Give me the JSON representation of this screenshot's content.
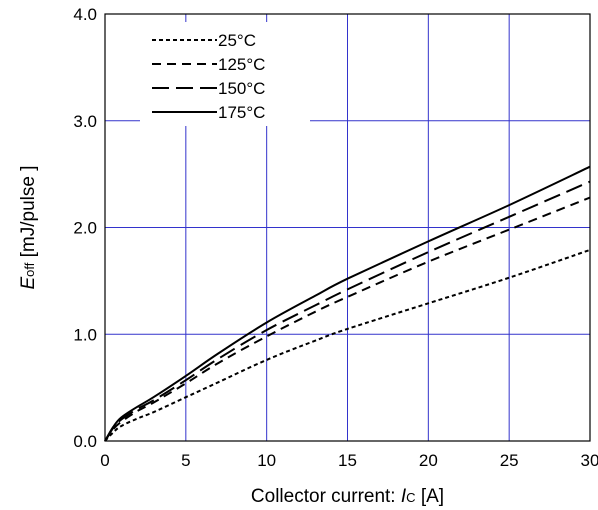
{
  "chart_data": {
    "type": "line",
    "x_axis": {
      "label_prefix": "Collector current: ",
      "label_symbol": "I",
      "label_subscript": "C",
      "label_suffix": " [A]",
      "ticks": [
        "0",
        "5",
        "10",
        "15",
        "20",
        "25",
        "30"
      ],
      "range": [
        0,
        30
      ]
    },
    "y_axis": {
      "label_symbol": "E",
      "label_subscript": "off",
      "label_suffix": " [mJ/pulse ]",
      "ticks": [
        "0.0",
        "1.0",
        "2.0",
        "3.0",
        "4.0"
      ],
      "range": [
        0,
        4
      ]
    },
    "grid": true,
    "grid_color": "#3333cc",
    "legend_position": "top-left",
    "series": [
      {
        "name": "25°C",
        "dash": "short",
        "x": [
          0,
          0.5,
          1,
          2,
          3,
          5,
          7,
          10,
          13,
          15,
          20,
          25,
          30
        ],
        "y": [
          0,
          0.08,
          0.14,
          0.21,
          0.27,
          0.41,
          0.55,
          0.76,
          0.94,
          1.05,
          1.29,
          1.53,
          1.79
        ]
      },
      {
        "name": "125°C",
        "dash": "medium",
        "x": [
          0,
          0.5,
          1,
          2,
          3,
          5,
          7,
          10,
          13,
          15,
          20,
          25,
          30
        ],
        "y": [
          0,
          0.11,
          0.18,
          0.28,
          0.36,
          0.54,
          0.73,
          0.98,
          1.21,
          1.35,
          1.68,
          1.98,
          2.28
        ]
      },
      {
        "name": "150°C",
        "dash": "long",
        "x": [
          0,
          0.5,
          1,
          2,
          3,
          5,
          7,
          10,
          13,
          15,
          20,
          25,
          30
        ],
        "y": [
          0,
          0.12,
          0.2,
          0.3,
          0.38,
          0.57,
          0.77,
          1.04,
          1.27,
          1.42,
          1.77,
          2.1,
          2.43
        ]
      },
      {
        "name": "175°C",
        "dash": "solid",
        "x": [
          0,
          0.5,
          1,
          2,
          3,
          5,
          7,
          10,
          13,
          15,
          20,
          25,
          30
        ],
        "y": [
          0,
          0.13,
          0.22,
          0.32,
          0.41,
          0.61,
          0.82,
          1.11,
          1.36,
          1.52,
          1.87,
          2.21,
          2.57
        ]
      }
    ]
  }
}
